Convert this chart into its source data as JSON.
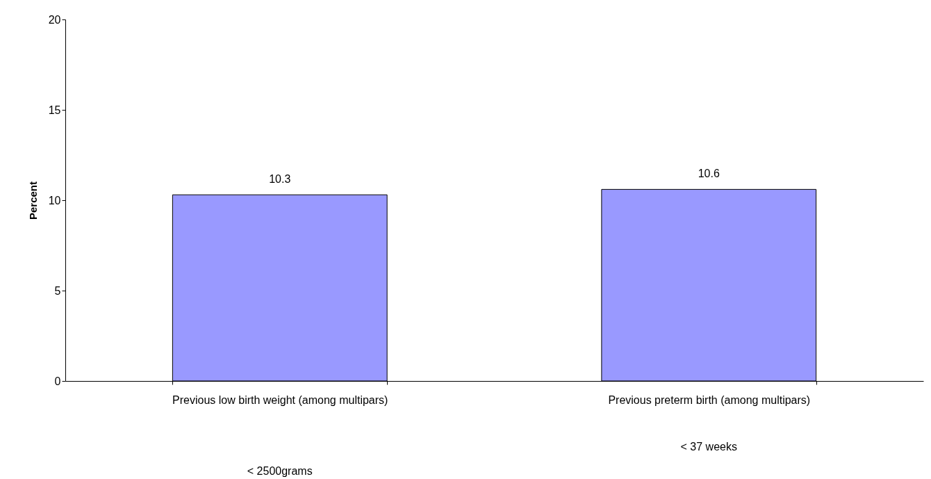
{
  "chart_data": {
    "type": "bar",
    "categories": [
      "Previous low birth weight (among multipars)",
      "Previous preterm birth (among multipars)"
    ],
    "values": [
      10.3,
      10.6
    ],
    "color": "#9999ff",
    "ylabel": "Percent",
    "ylim": [
      0,
      20
    ],
    "yticks": [
      0,
      5,
      10,
      15,
      20
    ],
    "data_labels": true,
    "grid": false,
    "annotations": [
      "< 2500grams",
      "< 37 weeks"
    ]
  }
}
